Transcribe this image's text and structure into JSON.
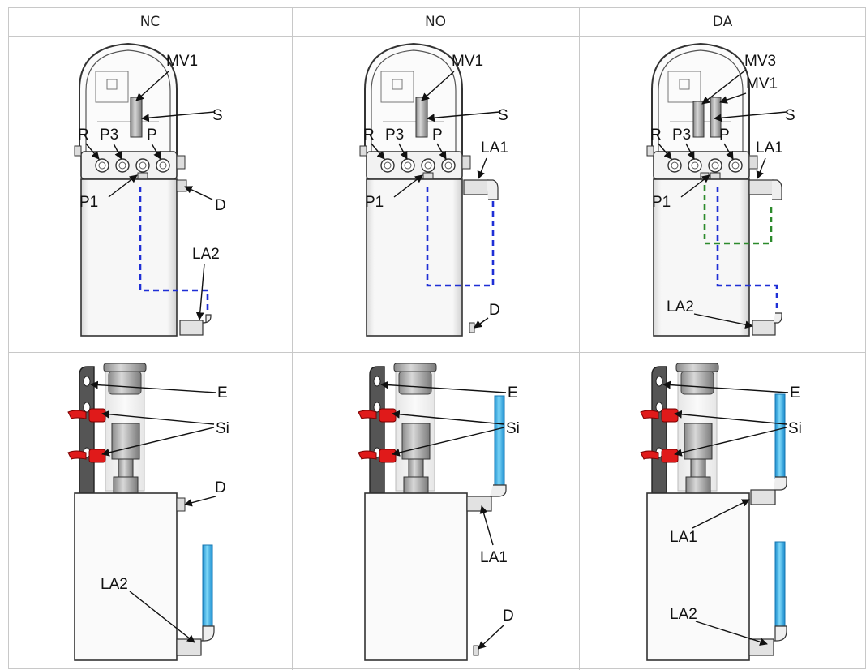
{
  "table": {
    "columns": [
      {
        "header": "NC",
        "top": {
          "mv": [
            "MV1"
          ],
          "s": "S",
          "ports": [
            "R",
            "P3",
            "P"
          ],
          "p1": "P1",
          "side": "D",
          "bottom": "LA2"
        },
        "bottom": {
          "e": "E",
          "si": "Si",
          "side": "D",
          "bottom": "LA2"
        }
      },
      {
        "header": "NO",
        "top": {
          "mv": [
            "MV1"
          ],
          "s": "S",
          "ports": [
            "R",
            "P3",
            "P"
          ],
          "p1": "P1",
          "side": "LA1",
          "bottom": "D"
        },
        "bottom": {
          "e": "E",
          "si": "Si",
          "side": "LA1",
          "bottom": "D"
        }
      },
      {
        "header": "DA",
        "top": {
          "mv": [
            "MV3",
            "MV1"
          ],
          "s": "S",
          "ports": [
            "R",
            "P3",
            "P"
          ],
          "p1": "P1",
          "side": "LA1",
          "bottom": "LA2"
        },
        "bottom": {
          "e": "E",
          "si": "Si",
          "side": "LA1",
          "bottom": "LA2"
        }
      }
    ]
  },
  "colors": {
    "grid": "#c8c8c8",
    "pneumatic_line_blue": "#1f2fd6",
    "pneumatic_line_green": "#2c8a2c",
    "silencer_red": "#e01a1a",
    "tube_cyan": "#2fb6e6"
  }
}
